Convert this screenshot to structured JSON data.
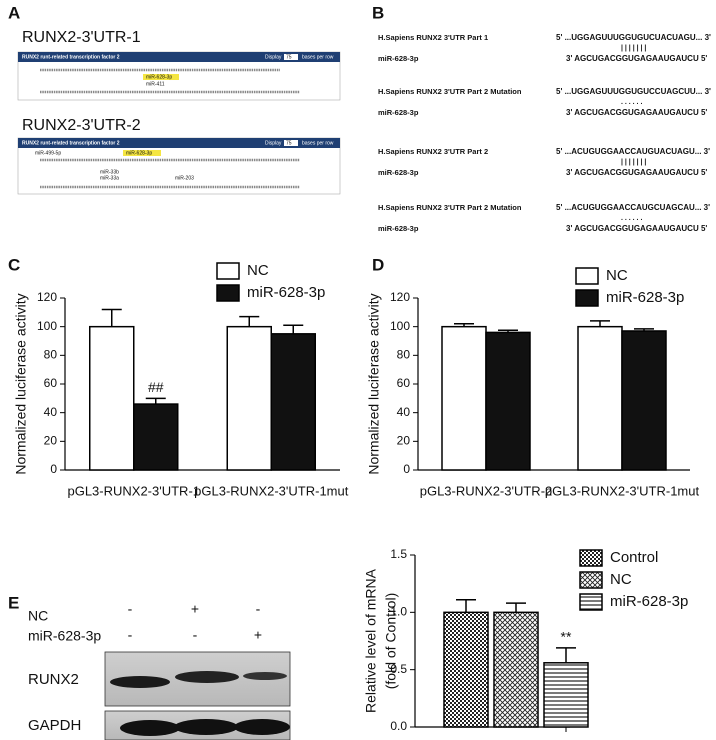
{
  "panels": [
    "A",
    "B",
    "C",
    "D",
    "E"
  ],
  "panel_a": {
    "title1": "RUNX2-3'UTR-1",
    "title2": "RUNX2-3'UTR-2",
    "header": "RUNX2 runt-related transcription factor 2",
    "display": "Display",
    "rows": "75",
    "per_row": "bases per row",
    "mirs1": [
      "miR-628-3p",
      "miR-411"
    ],
    "mirs2": [
      "miR-499-5p",
      "miR-628-3p",
      "miR-33b",
      "miR-33a",
      "miR-203"
    ]
  },
  "panel_b": {
    "rows": [
      {
        "name": "H.Sapiens RUNX2  3'UTR Part 1",
        "seq5": "5' ...UGGAGUUUGGUGUCUACUAGU... 3'",
        "pairing": "| | | | | | |",
        "mir": "miR-628-3p",
        "seq3": "3'   AGCUGACGGUGAGAAUGAUCU   5'"
      },
      {
        "name": "H.Sapiens RUNX2  3'UTR Part 2  Mutation",
        "seq5": "5' ...UGGAGUUUGGUGUCCUAGCUU... 3'",
        "pairing": ". . . . . .",
        "mir": "miR-628-3p",
        "seq3": "3'   AGCUGACGGUGAGAAUGAUCU   5'"
      },
      {
        "name": "H.Sapiens RUNX2  3'UTR Part 2",
        "seq5": "5' ...ACUGUGGAACCAUGUACUAGU... 3'",
        "pairing": "| | | | | | |",
        "mir": "miR-628-3p",
        "seq3": "3'   AGCUGACGGUGAGAAUGAUCU   5'"
      },
      {
        "name": "H.Sapiens RUNX2  3'UTR Part 2  Mutation",
        "seq5": "5' ...ACUGUGGAACCAUGCUAGCAU... 3'",
        "pairing": ". . . . . .",
        "mir": "miR-628-3p",
        "seq3": "3'   AGCUGACGGUGAGAAUGAUCU   5'"
      }
    ]
  },
  "blot": {
    "row_labels": [
      "NC",
      "miR-628-3p"
    ],
    "signs": [
      [
        "-",
        "+",
        "-"
      ],
      [
        "-",
        "-",
        "+"
      ]
    ],
    "bands": [
      "RUNX2",
      "GAPDH"
    ]
  },
  "chart_data": [
    {
      "type": "bar",
      "y_label": [
        "Normalized luciferase activity"
      ],
      "categories": [
        "pGL3-RUNX2-3'UTR-1",
        "pGL3-RUNX2-3'UTR-1mut"
      ],
      "series": [
        {
          "name": "NC",
          "color": "#ffffff",
          "values": [
            100,
            100
          ],
          "errors": [
            12,
            7
          ]
        },
        {
          "name": "miR-628-3p",
          "color": "#111111",
          "values": [
            46,
            95
          ],
          "errors": [
            4,
            6
          ]
        }
      ],
      "annotations": [
        {
          "text": "##",
          "series": 1,
          "category": 0
        }
      ],
      "ylim": [
        0,
        120
      ],
      "yticks": [
        0,
        20,
        40,
        60,
        80,
        100,
        120
      ],
      "grid": false
    },
    {
      "type": "bar",
      "y_label": [
        "Normalized luciferase activity"
      ],
      "categories": [
        "pGL3-RUNX2-3'UTR-2",
        "pGL3-RUNX2-3'UTR-1mut"
      ],
      "series": [
        {
          "name": "NC",
          "color": "#ffffff",
          "values": [
            100,
            100
          ],
          "errors": [
            2,
            4
          ]
        },
        {
          "name": "miR-628-3p",
          "color": "#111111",
          "values": [
            96,
            97
          ],
          "errors": [
            1.5,
            1.5
          ]
        }
      ],
      "annotations": [],
      "ylim": [
        0,
        120
      ],
      "yticks": [
        0,
        20,
        40,
        60,
        80,
        100,
        120
      ],
      "grid": false
    },
    {
      "type": "bar",
      "y_label": [
        "Relative level of mRNA",
        "(fold of Control)"
      ],
      "categories": [
        null
      ],
      "series": [
        {
          "name": "Control",
          "color": "#ffffff",
          "pattern": "checker",
          "values": [
            1.0
          ],
          "errors": [
            0.11
          ]
        },
        {
          "name": "NC",
          "color": "#ffffff",
          "pattern": "cross",
          "values": [
            1.0
          ],
          "errors": [
            0.08
          ]
        },
        {
          "name": "miR-628-3p",
          "color": "#ffffff",
          "pattern": "hlines",
          "values": [
            0.56
          ],
          "errors": [
            0.13
          ]
        }
      ],
      "annotations": [
        {
          "text": "**",
          "series": 2,
          "category": 0
        }
      ],
      "ylim": [
        0,
        1.5
      ],
      "yticks": [
        {
          "value": 0,
          "label": "0.0"
        },
        0.5,
        {
          "value": 1,
          "label": "1.0"
        },
        1.5
      ],
      "grid": false
    }
  ]
}
